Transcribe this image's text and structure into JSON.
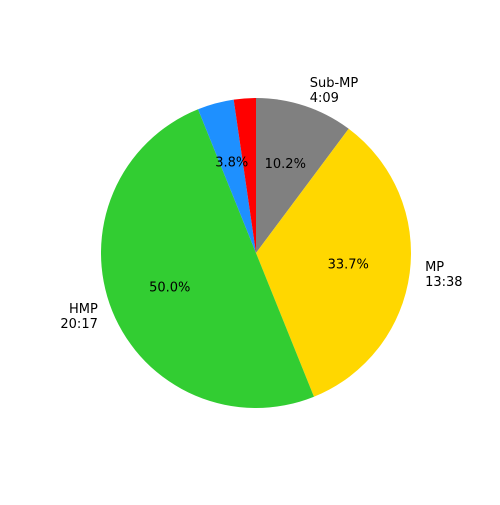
{
  "chart_data": {
    "type": "pie",
    "start_angle_deg": 90,
    "direction": "clockwise",
    "slices": [
      {
        "label_lines": [
          "Sub-MP",
          "4:09"
        ],
        "value": 10.2,
        "pct_label": "10.2%",
        "color": "#808080"
      },
      {
        "label_lines": [
          "MP",
          "13:38"
        ],
        "value": 33.7,
        "pct_label": "33.7%",
        "color": "#FFD700"
      },
      {
        "label_lines": [
          "HMP",
          "20:17"
        ],
        "value": 50.0,
        "pct_label": "50.0%",
        "color": "#32CD32"
      },
      {
        "label_lines": [],
        "value": 3.8,
        "pct_label": "3.8%",
        "color": "#1E90FF"
      },
      {
        "label_lines": [],
        "value": 2.3,
        "pct_label": "",
        "color": "#FF0000"
      }
    ]
  }
}
